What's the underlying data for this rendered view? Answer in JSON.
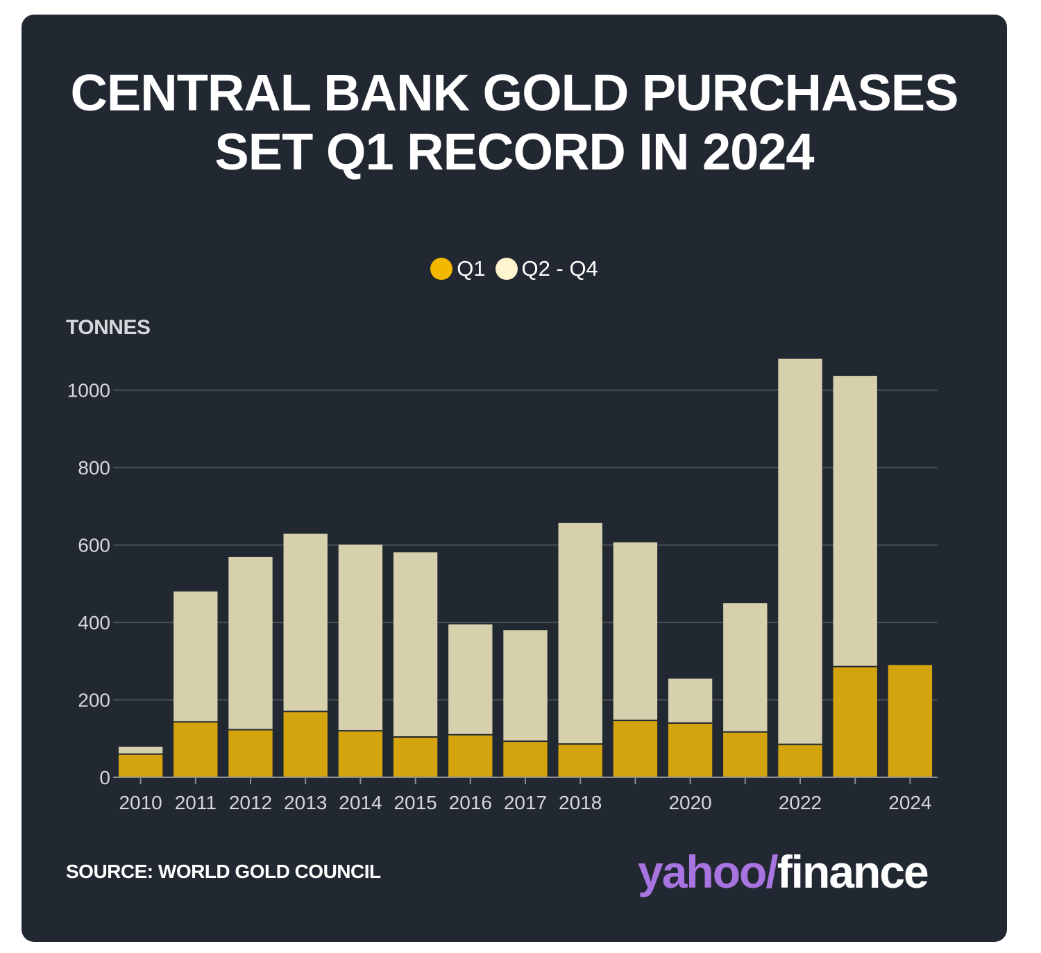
{
  "title": "CENTRAL BANK GOLD PURCHASES SET Q1 RECORD IN 2024",
  "legend": [
    {
      "label": "Q1",
      "color": "#f5b800"
    },
    {
      "label": "Q2 - Q4",
      "color": "#fff6cf"
    }
  ],
  "unit_label": "TONNES",
  "source": "SOURCE: WORLD GOLD COUNCIL",
  "logo": {
    "yahoo": "yahoo/",
    "finance": "finance"
  },
  "colors": {
    "background": "#222831",
    "q1_bar": "#d4a40f",
    "q2q4_bar": "#d6d0ad",
    "grid": "#4a4f55",
    "logo_purple": "#a874e0"
  },
  "chart_data": {
    "type": "bar",
    "stacked": true,
    "categories": [
      "2010",
      "2011",
      "2012",
      "2013",
      "2014",
      "2015",
      "2016",
      "2017",
      "2018",
      "2019",
      "2020",
      "2021",
      "2022",
      "2023",
      "2024"
    ],
    "x_tick_labels": [
      "2010",
      "2011",
      "2012",
      "2013",
      "2014",
      "2015",
      "2016",
      "2017",
      "2018",
      "",
      "2020",
      "",
      "2022",
      "",
      "2024"
    ],
    "series": [
      {
        "name": "Q1",
        "values": [
          60,
          143,
          123,
          170,
          120,
          104,
          110,
          93,
          86,
          147,
          140,
          117,
          85,
          286,
          290
        ]
      },
      {
        "name": "Q2 - Q4",
        "values": [
          19,
          337,
          446,
          459,
          481,
          477,
          285,
          287,
          571,
          460,
          115,
          333,
          996,
          751,
          0
        ]
      }
    ],
    "ylabel": "TONNES",
    "ylim": [
      0,
      1100
    ],
    "yticks": [
      0,
      200,
      400,
      600,
      800,
      1000
    ],
    "grid": true,
    "legend_position": "top-center"
  }
}
